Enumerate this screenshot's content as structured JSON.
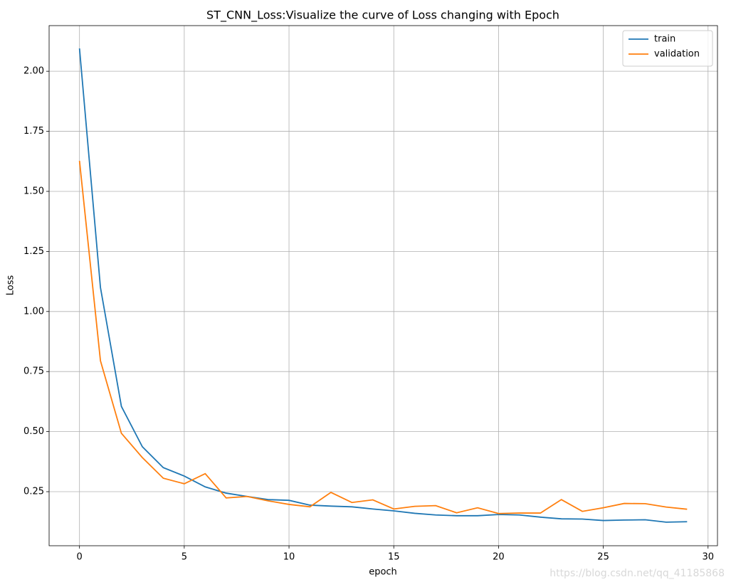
{
  "chart_data": {
    "type": "line",
    "title": "ST_CNN_Loss:Visualize the curve of Loss changing with Epoch",
    "x_label": "epoch",
    "y_label": "Loss",
    "x": [
      0,
      1,
      2,
      3,
      4,
      5,
      6,
      7,
      8,
      9,
      10,
      11,
      12,
      13,
      14,
      15,
      16,
      17,
      18,
      19,
      20,
      21,
      22,
      23,
      24,
      25,
      26,
      27,
      28,
      29
    ],
    "series": [
      {
        "name": "train",
        "color": "#1f77b4",
        "values": [
          2.095,
          1.1,
          0.605,
          0.437,
          0.35,
          0.315,
          0.27,
          0.244,
          0.23,
          0.217,
          0.214,
          0.194,
          0.19,
          0.187,
          0.178,
          0.17,
          0.16,
          0.153,
          0.15,
          0.15,
          0.155,
          0.153,
          0.144,
          0.137,
          0.136,
          0.13,
          0.132,
          0.133,
          0.123,
          0.125
        ]
      },
      {
        "name": "validation",
        "color": "#ff7f0e",
        "values": [
          1.627,
          0.795,
          0.493,
          0.392,
          0.306,
          0.283,
          0.325,
          0.224,
          0.23,
          0.212,
          0.197,
          0.187,
          0.247,
          0.205,
          0.216,
          0.178,
          0.189,
          0.192,
          0.162,
          0.183,
          0.159,
          0.161,
          0.161,
          0.217,
          0.168,
          0.183,
          0.201,
          0.2,
          0.186,
          0.177
        ]
      }
    ],
    "xlim": [
      -1.45,
      30.45
    ],
    "xticks": [
      0,
      5,
      10,
      15,
      20,
      25,
      30
    ],
    "ylim": [
      0.025,
      2.19
    ],
    "yticks": [
      {
        "value": 0.25,
        "label": "0.25"
      },
      {
        "value": 0.5,
        "label": "0.50"
      },
      {
        "value": 0.75,
        "label": "0.75"
      },
      {
        "value": 1.0,
        "label": "1.00"
      },
      {
        "value": 1.25,
        "label": "1.25"
      },
      {
        "value": 1.5,
        "label": "1.50"
      },
      {
        "value": 1.75,
        "label": "1.75"
      },
      {
        "value": 2.0,
        "label": "2.00"
      }
    ],
    "grid": true,
    "legend": "upper-right",
    "watermark": "https://blog.csdn.net/qq_41185868"
  }
}
